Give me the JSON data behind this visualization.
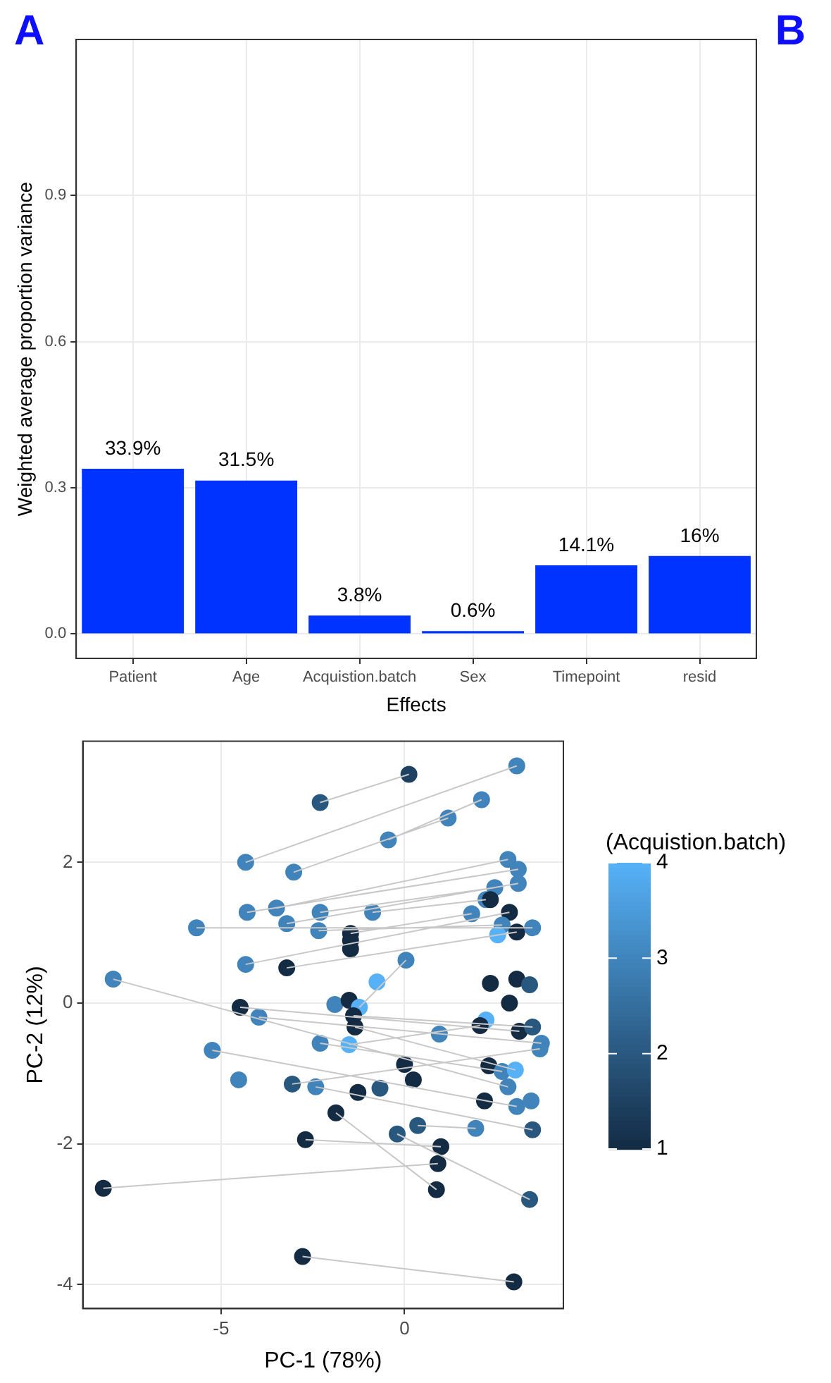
{
  "chart_data": [
    {
      "type": "bar",
      "annotations": [
        "A",
        "B"
      ],
      "xlabel": "Effects",
      "ylabel": "Weighted average proportion variance",
      "categories": [
        "Patient",
        "Age",
        "Acquistion.batch",
        "Sex",
        "Timepoint",
        "resid"
      ],
      "values": [
        0.339,
        0.315,
        0.038,
        0.006,
        0.141,
        0.16
      ],
      "color": "#0033ff",
      "value_labels": [
        "33.9%",
        "31.5%",
        "3.8%",
        "0.6%",
        "14.1%",
        "16%"
      ],
      "ylim": [
        -0.05,
        1.22
      ],
      "yticks": [
        {
          "value": 0,
          "label": "0.0"
        },
        0.3,
        0.6,
        0.9
      ],
      "grid": true,
      "legend": false
    },
    {
      "type": "scatter",
      "xlabel": "PC-1 (78%)",
      "ylabel": "PC-2 (12%)",
      "clabel": "(Acquistion.batch)",
      "clim": [
        1,
        4
      ],
      "cticks": [
        1,
        2,
        3,
        4
      ],
      "xlim": [
        -8.77,
        4.33
      ],
      "xticks": [
        -5,
        0
      ],
      "ylim": [
        -4.34,
        3.72
      ],
      "yticks": [
        -4,
        -2,
        0,
        2
      ],
      "grid": true,
      "legend": false,
      "marker": "circle",
      "series": [
        {
          "type": "line",
          "color": "#c8c8c8",
          "marker": "none",
          "x": [
            -2.3,
            0.12,
            null,
            -4.33,
            3.06,
            null,
            -0.44,
            2.1,
            null,
            -3.02,
            1.19,
            null,
            -8.21,
            0.91,
            null,
            -1.87,
            0.87,
            null,
            -2.7,
            0.99,
            null,
            -0.2,
            3.41,
            null,
            0.36,
            1.94,
            null,
            -2.78,
            2.98,
            null,
            -7.94,
            2.82,
            null,
            -5.67,
            3.49,
            null,
            -4.29,
            3.1,
            null,
            -3.49,
            2.82,
            null,
            -3.21,
            3.1,
            null,
            -2.3,
            2.46,
            null,
            -0.87,
            2.22,
            null,
            -2.34,
            2.66,
            null,
            -4.33,
            2.86,
            null,
            -3.21,
            3.06,
            null,
            -4.48,
            3.13,
            null,
            -3.97,
            3.73,
            null,
            -2.3,
            2.66,
            null,
            -5.24,
            3.06,
            null,
            -2.42,
            3.49,
            null,
            -3.06,
            3.69,
            null,
            -1.39,
            3.49,
            null,
            -1.35,
            3.02,
            null,
            -1.51,
            2.06,
            null,
            -1.23,
            0.04,
            null,
            -1.47,
            1.83,
            null
          ],
          "values": [
            2.85,
            3.25,
            null,
            2.0,
            3.37,
            null,
            2.32,
            2.89,
            null,
            1.86,
            2.63,
            null,
            -2.63,
            -2.28,
            null,
            -1.56,
            -2.65,
            null,
            -1.94,
            -2.04,
            null,
            -1.86,
            -2.79,
            null,
            -1.74,
            -1.78,
            null,
            -3.6,
            -3.96,
            null,
            0.34,
            -1.19,
            null,
            1.07,
            1.07,
            null,
            1.29,
            1.9,
            null,
            1.35,
            2.04,
            null,
            1.13,
            1.7,
            null,
            1.29,
            1.64,
            null,
            1.29,
            1.47,
            null,
            1.03,
            1.11,
            null,
            0.55,
            1.29,
            null,
            0.5,
            1.01,
            null,
            -0.06,
            -0.4,
            null,
            -0.2,
            -0.57,
            null,
            -0.57,
            -0.97,
            null,
            -0.67,
            -1.47,
            null,
            -1.19,
            -1.8,
            null,
            -1.15,
            -0.65,
            null,
            -0.18,
            -0.34,
            null,
            -0.34,
            -0.95,
            null,
            -0.59,
            -0.32,
            null,
            -0.06,
            0.61,
            null,
            0.99,
            1.27,
            null
          ]
        },
        {
          "type": "scatter",
          "x": [
            3.06,
            0.12,
            -2.3,
            2.1,
            1.19,
            -0.44,
            -4.33,
            -3.02,
            2.82,
            3.1,
            3.1,
            2.46,
            2.22,
            2.34,
            -4.29,
            -3.49,
            -3.21,
            -5.67,
            -2.3,
            -0.87,
            1.83,
            2.86,
            -2.34,
            -1.47,
            -1.47,
            -1.47,
            2.66,
            2.54,
            3.06,
            3.49,
            0.04,
            -0.75,
            -4.33,
            -3.21,
            -7.94,
            -4.48,
            -3.97,
            -1.9,
            -1.51,
            -1.23,
            -1.39,
            -1.35,
            2.86,
            2.34,
            3.06,
            3.41,
            2.22,
            2.06,
            3.13,
            3.49,
            0.95,
            3.73,
            3.69,
            -2.3,
            -1.51,
            -5.24,
            0.0,
            2.3,
            2.66,
            3.02,
            -4.52,
            -3.06,
            -2.42,
            0.24,
            2.82,
            -1.27,
            -0.67,
            2.18,
            3.45,
            3.06,
            -1.87,
            0.36,
            -0.2,
            1.94,
            3.49,
            0.99,
            0.91,
            0.87,
            3.41,
            -2.7,
            -8.21,
            -2.78,
            2.98
          ],
          "values": [
            3.37,
            3.25,
            2.85,
            2.89,
            2.63,
            2.32,
            2.0,
            1.86,
            2.04,
            1.9,
            1.7,
            1.64,
            1.47,
            1.47,
            1.29,
            1.35,
            1.13,
            1.07,
            1.29,
            1.29,
            1.27,
            1.29,
            1.03,
            0.99,
            0.89,
            0.77,
            1.11,
            0.97,
            1.01,
            1.07,
            0.61,
            0.3,
            0.55,
            0.5,
            0.34,
            -0.06,
            -0.2,
            -0.02,
            0.04,
            -0.06,
            -0.18,
            -0.34,
            0.0,
            0.28,
            0.34,
            0.26,
            -0.24,
            -0.32,
            -0.4,
            -0.34,
            -0.44,
            -0.57,
            -0.65,
            -0.57,
            -0.59,
            -0.67,
            -0.87,
            -0.89,
            -0.97,
            -0.95,
            -1.09,
            -1.15,
            -1.19,
            -1.09,
            -1.19,
            -1.27,
            -1.21,
            -1.39,
            -1.39,
            -1.47,
            -1.56,
            -1.74,
            -1.86,
            -1.78,
            -1.8,
            -2.04,
            -2.28,
            -2.65,
            -2.79,
            -1.94,
            -2.63,
            -3.6,
            -3.96
          ],
          "colors": [
            "#4084bb",
            "#1e4161",
            "#29587f",
            "#4084bb",
            "#4084bb",
            "#4084bb",
            "#4084bb",
            "#4084bb",
            "#4084bb",
            "#4084bb",
            "#4084bb",
            "#4084bb",
            "#4084bb",
            "#132b43",
            "#4084bb",
            "#4084bb",
            "#4084bb",
            "#4084bb",
            "#4084bb",
            "#4084bb",
            "#4084bb",
            "#132b43",
            "#4084bb",
            "#132b43",
            "#132b43",
            "#132b43",
            "#4084bb",
            "#56b1f7",
            "#132b43",
            "#4084bb",
            "#4084bb",
            "#56b1f7",
            "#4084bb",
            "#132b43",
            "#4084bb",
            "#132b43",
            "#4084bb",
            "#4084bb",
            "#132b43",
            "#56b1f7",
            "#132b43",
            "#132b43",
            "#132b43",
            "#132b43",
            "#132b43",
            "#29587f",
            "#56b1f7",
            "#132b43",
            "#132b43",
            "#29587f",
            "#4084bb",
            "#4084bb",
            "#4084bb",
            "#4084bb",
            "#56b1f7",
            "#4084bb",
            "#132b43",
            "#132b43",
            "#4084bb",
            "#56b1f7",
            "#4084bb",
            "#29587f",
            "#4084bb",
            "#132b43",
            "#4084bb",
            "#132b43",
            "#29587f",
            "#132b43",
            "#4084bb",
            "#4084bb",
            "#132b43",
            "#29587f",
            "#29587f",
            "#4084bb",
            "#29587f",
            "#132b43",
            "#132b43",
            "#132b43",
            "#29587f",
            "#132b43",
            "#132b43",
            "#132b43",
            "#132b43"
          ],
          "cvalues": [
            3,
            1.5,
            2,
            3,
            3,
            3,
            3,
            3,
            3,
            3,
            3,
            3,
            3,
            1,
            3,
            3,
            3,
            3,
            3,
            3,
            3,
            1,
            3,
            1,
            1,
            1,
            3,
            4,
            1,
            3,
            3,
            4,
            3,
            1,
            3,
            1,
            3,
            3,
            1,
            4,
            1,
            1,
            1,
            1,
            1,
            2,
            4,
            1,
            1,
            2,
            3,
            3,
            3,
            3,
            4,
            3,
            1,
            1,
            3,
            4,
            3,
            2,
            3,
            1,
            3,
            1,
            2,
            1,
            3,
            3,
            1,
            2,
            2,
            3,
            2,
            1,
            1,
            1,
            2,
            1,
            1,
            1,
            1
          ]
        }
      ]
    }
  ]
}
